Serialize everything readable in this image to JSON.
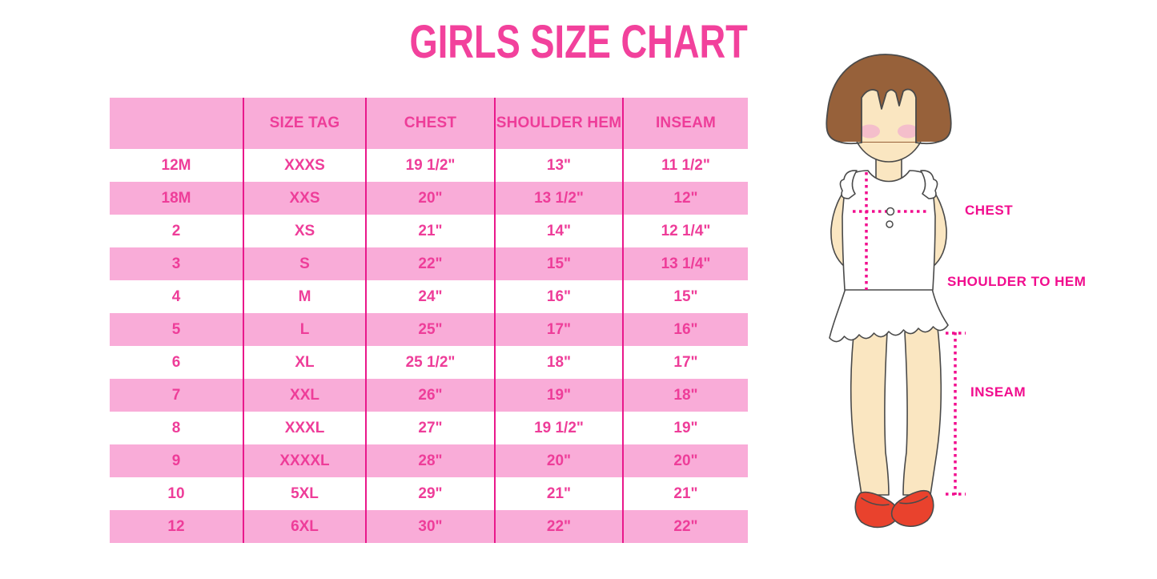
{
  "page": {
    "title": "GIRLS SIZE CHART"
  },
  "colors": {
    "title_pink": "#F2419C",
    "row_band_pink": "#F9ACD8",
    "table_text_pink": "#EE3D99",
    "column_line_magenta": "#E9188B",
    "measure_label_magenta": "#F10D8E",
    "hair_brown": "#97613A",
    "skin": "#FAE6C1",
    "blush": "#F4BECB",
    "shoe_red": "#E9422D",
    "outline": "#4A4A4A",
    "background": "#FFFFFF"
  },
  "chart_data": {
    "type": "table",
    "title": "GIRLS SIZE CHART",
    "headers": [
      "",
      "SIZE TAG",
      "CHEST",
      "SHOULDER HEM",
      "INSEAM"
    ],
    "rows": [
      [
        "12M",
        "XXXS",
        "19 1/2\"",
        "13\"",
        "11 1/2\""
      ],
      [
        "18M",
        "XXS",
        "20\"",
        "13 1/2\"",
        "12\""
      ],
      [
        "2",
        "XS",
        "21\"",
        "14\"",
        "12 1/4\""
      ],
      [
        "3",
        "S",
        "22\"",
        "15\"",
        "13 1/4\""
      ],
      [
        "4",
        "M",
        "24\"",
        "16\"",
        "15\""
      ],
      [
        "5",
        "L",
        "25\"",
        "17\"",
        "16\""
      ],
      [
        "6",
        "XL",
        "25 1/2\"",
        "18\"",
        "17\""
      ],
      [
        "7",
        "XXL",
        "26\"",
        "19\"",
        "18\""
      ],
      [
        "8",
        "XXXL",
        "27\"",
        "19 1/2\"",
        "19\""
      ],
      [
        "9",
        "XXXXL",
        "28\"",
        "20\"",
        "20\""
      ],
      [
        "10",
        "5XL",
        "29\"",
        "21\"",
        "21\""
      ],
      [
        "12",
        "6XL",
        "30\"",
        "22\"",
        "22\""
      ]
    ],
    "row_banding": "alternating white and pink, header pink",
    "grid": "four magenta vertical column separators, no horizontal rules"
  },
  "figure": {
    "description": "illustrated girl with measurement guides",
    "labels": {
      "chest": "CHEST",
      "shoulder_to_hem": "SHOULDER TO HEM",
      "inseam": "INSEAM"
    }
  }
}
